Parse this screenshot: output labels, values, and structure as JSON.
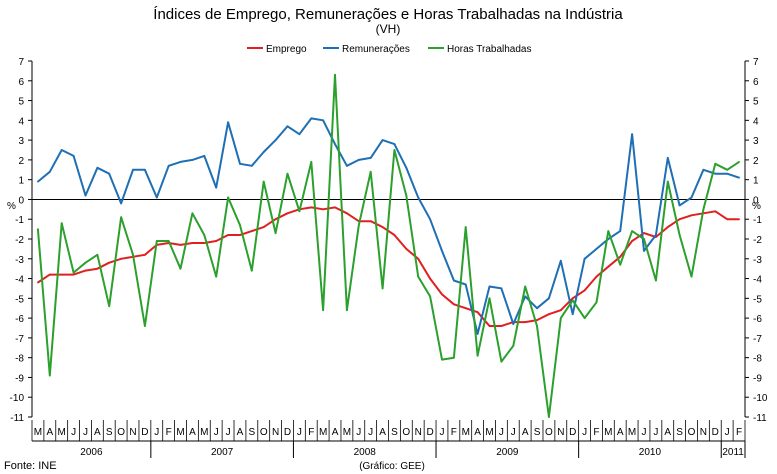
{
  "title": "Índices de Emprego, Remunerações e Horas Trabalhadas na Indústria",
  "subtitle": "(VH)",
  "y_unit_left": "%",
  "y_unit_right": "%",
  "source": "Fonte: INE",
  "credit": "(Gráfico: GEE)",
  "chart_data": {
    "type": "line",
    "title": "Índices de Emprego, Remunerações e Horas Trabalhadas na Indústria",
    "subtitle": "(VH)",
    "ylabel": "%",
    "ylim": [
      -11,
      7
    ],
    "y_ticks": [
      7,
      6,
      5,
      4,
      3,
      2,
      1,
      0,
      -1,
      -2,
      -3,
      -4,
      -5,
      -6,
      -7,
      -8,
      -9,
      -10,
      -11
    ],
    "grid": false,
    "legend_position": "top-center",
    "month_labels": [
      "M",
      "A",
      "M",
      "J",
      "J",
      "A",
      "S",
      "O",
      "N",
      "D",
      "J",
      "F",
      "M",
      "A",
      "M",
      "J",
      "J",
      "A",
      "S",
      "O",
      "N",
      "D",
      "J",
      "F",
      "M",
      "A",
      "M",
      "J",
      "J",
      "A",
      "S",
      "O",
      "N",
      "D",
      "J",
      "F",
      "M",
      "A",
      "M",
      "J",
      "J",
      "A",
      "S",
      "O",
      "N",
      "D",
      "J",
      "F",
      "M",
      "A",
      "M",
      "J",
      "J",
      "A",
      "S",
      "O",
      "N",
      "D",
      "J",
      "F"
    ],
    "year_groups": [
      {
        "label": "2006",
        "start": 0,
        "end": 9
      },
      {
        "label": "2007",
        "start": 10,
        "end": 21
      },
      {
        "label": "2008",
        "start": 22,
        "end": 33
      },
      {
        "label": "2009",
        "start": 34,
        "end": 45
      },
      {
        "label": "2010",
        "start": 46,
        "end": 57
      },
      {
        "label": "2011",
        "start": 58,
        "end": 59
      }
    ],
    "series": [
      {
        "name": "Emprego",
        "color": "#e02020",
        "values": [
          -4.2,
          -3.8,
          -3.8,
          -3.8,
          -3.6,
          -3.5,
          -3.2,
          -3.0,
          -2.9,
          -2.8,
          -2.3,
          -2.2,
          -2.3,
          -2.2,
          -2.2,
          -2.1,
          -1.8,
          -1.8,
          -1.6,
          -1.4,
          -1.0,
          -0.7,
          -0.5,
          -0.4,
          -0.5,
          -0.4,
          -0.7,
          -1.1,
          -1.1,
          -1.4,
          -1.8,
          -2.5,
          -3.0,
          -4.0,
          -4.8,
          -5.3,
          -5.5,
          -5.7,
          -6.4,
          -6.4,
          -6.2,
          -6.2,
          -6.1,
          -5.8,
          -5.6,
          -5.0,
          -4.6,
          -3.9,
          -3.4,
          -2.9,
          -2.1,
          -1.7,
          -1.9,
          -1.4,
          -1.0,
          -0.8,
          -0.7,
          -0.6,
          -1.0,
          -1.0
        ]
      },
      {
        "name": "Remunerações",
        "color": "#1f6fb5",
        "values": [
          0.9,
          1.4,
          2.5,
          2.2,
          0.2,
          1.6,
          1.3,
          -0.2,
          1.5,
          1.5,
          0.1,
          1.7,
          1.9,
          2.0,
          2.2,
          0.6,
          3.9,
          1.8,
          1.7,
          2.4,
          3.0,
          3.7,
          3.3,
          4.1,
          4.0,
          2.8,
          1.7,
          2.0,
          2.1,
          3.0,
          2.8,
          1.6,
          0.1,
          -1.0,
          -2.6,
          -4.1,
          -4.3,
          -6.8,
          -4.4,
          -4.5,
          -6.3,
          -4.9,
          -5.5,
          -5.0,
          -3.1,
          -5.8,
          -3.0,
          -2.5,
          -2.0,
          -1.6,
          3.3,
          -2.6,
          -1.8,
          2.1,
          -0.3,
          0.1,
          1.5,
          1.3,
          1.3,
          1.1
        ]
      },
      {
        "name": "Horas Trabalhadas",
        "color": "#2ca02c",
        "values": [
          -1.5,
          -8.9,
          -1.2,
          -3.7,
          -3.2,
          -2.8,
          -5.4,
          -0.9,
          -2.8,
          -6.4,
          -2.1,
          -2.1,
          -3.5,
          -0.7,
          -1.8,
          -3.9,
          0.1,
          -1.3,
          -3.6,
          0.9,
          -1.7,
          1.3,
          -0.6,
          1.9,
          -5.6,
          6.3,
          -5.6,
          -1.3,
          1.4,
          -4.5,
          2.5,
          0.2,
          -3.9,
          -4.9,
          -8.1,
          -8.0,
          -1.4,
          -7.9,
          -5.0,
          -8.2,
          -7.4,
          -4.4,
          -6.4,
          -11.0,
          -6.0,
          -5.1,
          -6.0,
          -5.2,
          -1.6,
          -3.3,
          -1.6,
          -2.0,
          -4.1,
          0.9,
          -1.8,
          -3.9,
          -0.5,
          1.8,
          1.5,
          1.9
        ]
      }
    ]
  }
}
